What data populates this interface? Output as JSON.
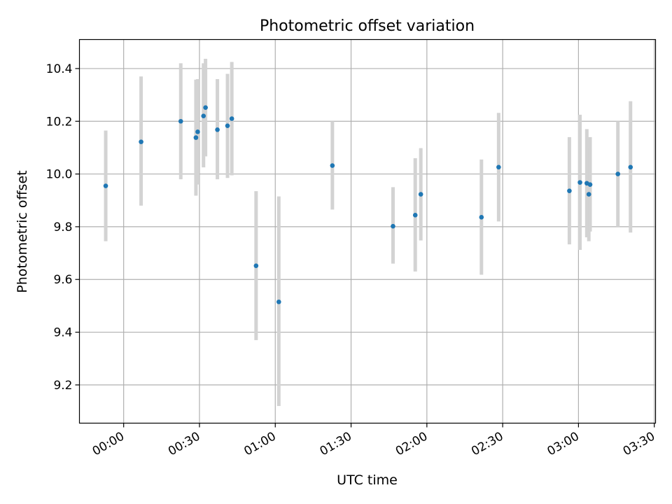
{
  "chart_data": {
    "type": "scatter",
    "title": "Photometric offset variation",
    "xlabel": "UTC time",
    "ylabel": "Photometric offset",
    "xlim_minutes": [
      -17.5,
      210.5
    ],
    "ylim": [
      9.055,
      10.51
    ],
    "x_ticks": [
      {
        "minutes": 0,
        "label": "00:00"
      },
      {
        "minutes": 30,
        "label": "00:30"
      },
      {
        "minutes": 60,
        "label": "01:00"
      },
      {
        "minutes": 90,
        "label": "01:30"
      },
      {
        "minutes": 120,
        "label": "02:00"
      },
      {
        "minutes": 150,
        "label": "02:30"
      },
      {
        "minutes": 180,
        "label": "03:00"
      },
      {
        "minutes": 210,
        "label": "03:30"
      }
    ],
    "y_ticks": [
      {
        "value": 9.2,
        "label": "9.2"
      },
      {
        "value": 9.4,
        "label": "9.4"
      },
      {
        "value": 9.6,
        "label": "9.6"
      },
      {
        "value": 9.8,
        "label": "9.8"
      },
      {
        "value": 10.0,
        "label": "10.0"
      },
      {
        "value": 10.2,
        "label": "10.2"
      },
      {
        "value": 10.4,
        "label": "10.4"
      }
    ],
    "grid": true,
    "point_color": "#1f77b4",
    "errorbar_color": "#d3d3d3",
    "points": [
      {
        "minutes": -7.1,
        "y": 9.955,
        "err_low": 9.745,
        "err_high": 10.165
      },
      {
        "minutes": 6.9,
        "y": 10.122,
        "err_low": 9.88,
        "err_high": 10.37
      },
      {
        "minutes": 22.6,
        "y": 10.2,
        "err_low": 9.98,
        "err_high": 10.42
      },
      {
        "minutes": 28.6,
        "y": 10.138,
        "err_low": 9.918,
        "err_high": 10.358
      },
      {
        "minutes": 29.3,
        "y": 10.16,
        "err_low": 9.96,
        "err_high": 10.36
      },
      {
        "minutes": 31.6,
        "y": 10.22,
        "err_low": 10.025,
        "err_high": 10.42
      },
      {
        "minutes": 32.4,
        "y": 10.252,
        "err_low": 10.067,
        "err_high": 10.437
      },
      {
        "minutes": 37.1,
        "y": 10.168,
        "err_low": 9.98,
        "err_high": 10.36
      },
      {
        "minutes": 41.1,
        "y": 10.183,
        "err_low": 9.985,
        "err_high": 10.38
      },
      {
        "minutes": 42.8,
        "y": 10.21,
        "err_low": 9.995,
        "err_high": 10.425
      },
      {
        "minutes": 52.4,
        "y": 9.652,
        "err_low": 9.37,
        "err_high": 9.935
      },
      {
        "minutes": 61.4,
        "y": 9.515,
        "err_low": 9.12,
        "err_high": 9.915
      },
      {
        "minutes": 82.6,
        "y": 10.032,
        "err_low": 9.865,
        "err_high": 10.2
      },
      {
        "minutes": 106.6,
        "y": 9.802,
        "err_low": 9.66,
        "err_high": 9.95
      },
      {
        "minutes": 115.4,
        "y": 9.844,
        "err_low": 9.63,
        "err_high": 10.06
      },
      {
        "minutes": 117.6,
        "y": 9.923,
        "err_low": 9.748,
        "err_high": 10.098
      },
      {
        "minutes": 141.6,
        "y": 9.836,
        "err_low": 9.618,
        "err_high": 10.055
      },
      {
        "minutes": 148.4,
        "y": 10.026,
        "err_low": 9.82,
        "err_high": 10.232
      },
      {
        "minutes": 176.4,
        "y": 9.936,
        "err_low": 9.733,
        "err_high": 10.14
      },
      {
        "minutes": 180.6,
        "y": 9.968,
        "err_low": 9.712,
        "err_high": 10.225
      },
      {
        "minutes": 183.3,
        "y": 9.965,
        "err_low": 9.76,
        "err_high": 10.17
      },
      {
        "minutes": 184.1,
        "y": 9.923,
        "err_low": 9.745,
        "err_high": 10.1
      },
      {
        "minutes": 184.6,
        "y": 9.96,
        "err_low": 9.782,
        "err_high": 10.14
      },
      {
        "minutes": 195.6,
        "y": 10.0,
        "err_low": 9.8,
        "err_high": 10.2
      },
      {
        "minutes": 200.6,
        "y": 10.026,
        "err_low": 9.778,
        "err_high": 10.276
      }
    ]
  }
}
